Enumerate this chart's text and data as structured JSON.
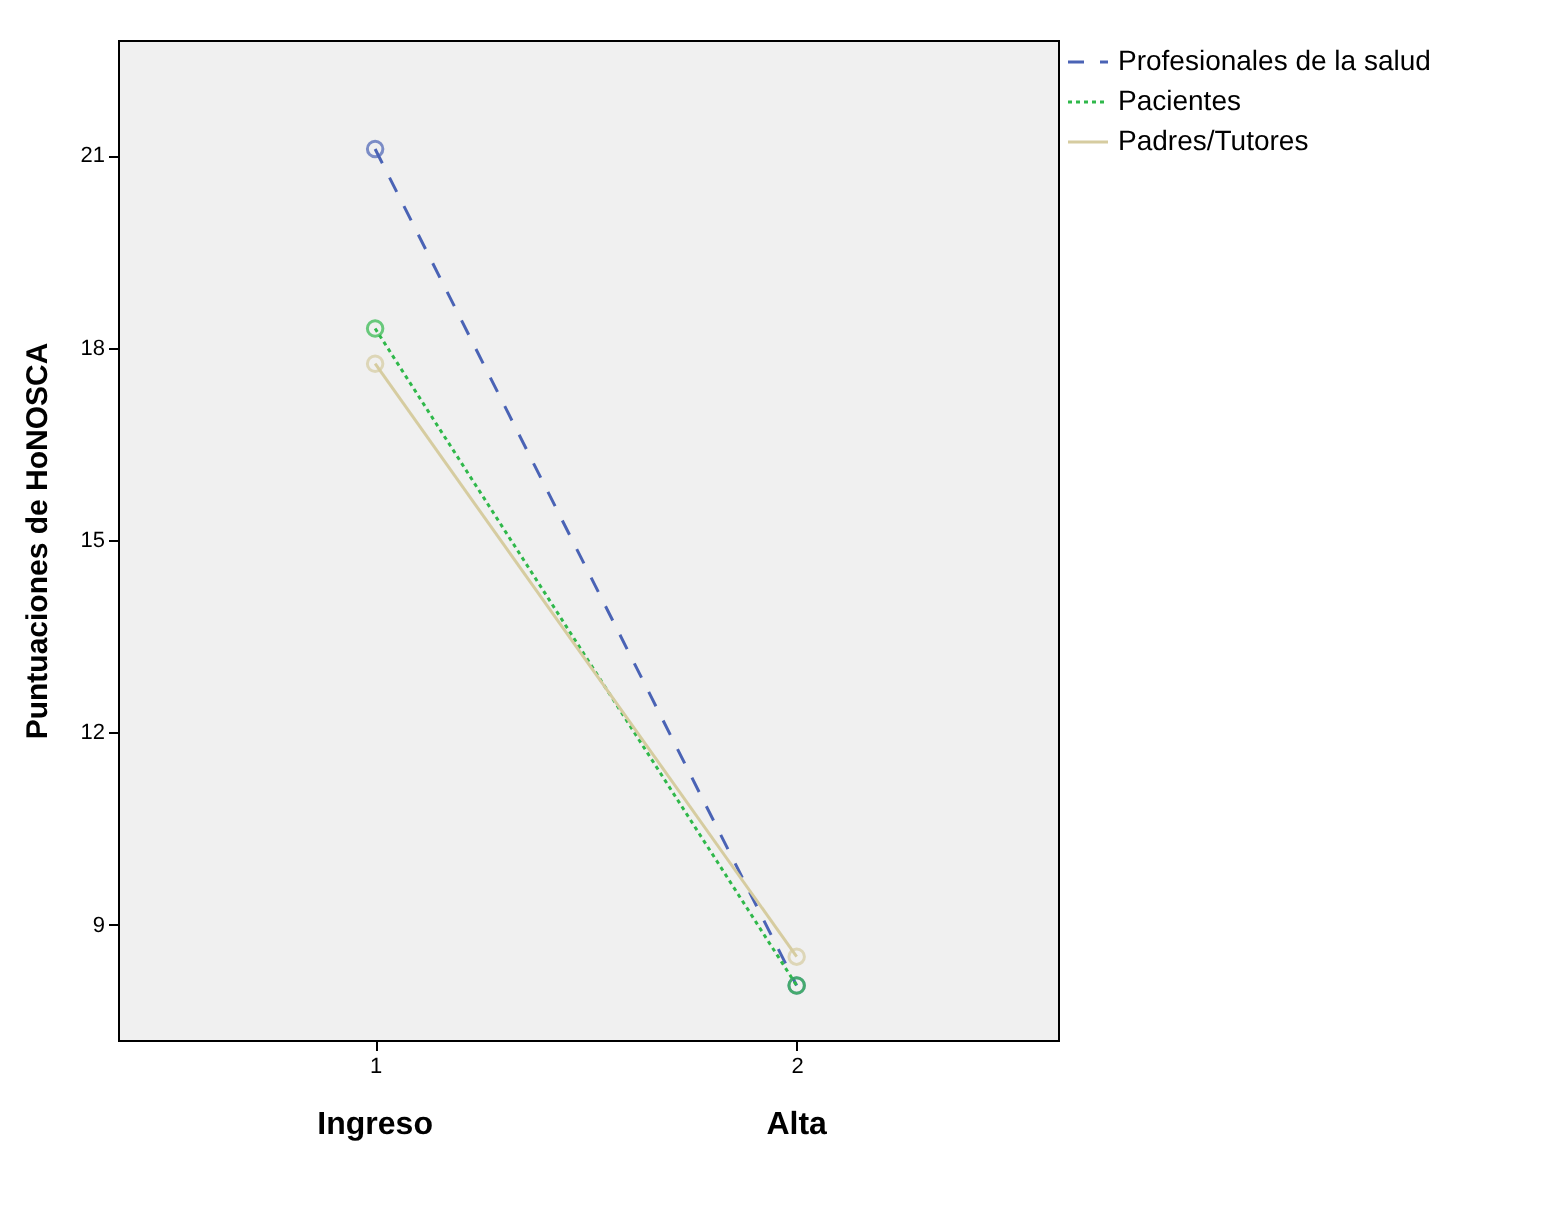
{
  "chart_data": {
    "type": "line",
    "ylabel": "Puntuaciones de HoNOSCA",
    "x": [
      1,
      2
    ],
    "xlim": [
      0.39,
      2.62
    ],
    "xticks": [
      1,
      2
    ],
    "ylim": [
      7.2,
      22.8
    ],
    "yticks": [
      9,
      12,
      15,
      18,
      21
    ],
    "series": [
      {
        "name": "Profesionales de la salud",
        "color": "#4a63b5",
        "values": [
          21.1,
          8.05
        ],
        "line_style": "dashed"
      },
      {
        "name": "Pacientes",
        "color": "#2fb84a",
        "values": [
          18.3,
          8.05
        ],
        "line_style": "dotted"
      },
      {
        "name": "Padres/Tutores",
        "color": "#d6cca0",
        "values": [
          17.75,
          8.5
        ],
        "line_style": "solid"
      }
    ],
    "annotations": [
      "Ingreso",
      "Alta"
    ],
    "marker": "circle",
    "grid": false,
    "legend": "top right"
  }
}
